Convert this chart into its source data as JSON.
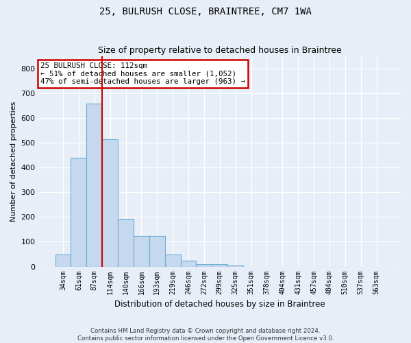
{
  "title": "25, BULRUSH CLOSE, BRAINTREE, CM7 1WA",
  "subtitle": "Size of property relative to detached houses in Braintree",
  "xlabel": "Distribution of detached houses by size in Braintree",
  "ylabel": "Number of detached properties",
  "bar_color": "#c5d8ed",
  "bar_edge_color": "#6aaed6",
  "background_color": "#e8eef7",
  "grid_color": "#ffffff",
  "bin_labels": [
    "34sqm",
    "61sqm",
    "87sqm",
    "114sqm",
    "140sqm",
    "166sqm",
    "193sqm",
    "219sqm",
    "246sqm",
    "272sqm",
    "299sqm",
    "325sqm",
    "351sqm",
    "378sqm",
    "404sqm",
    "431sqm",
    "457sqm",
    "484sqm",
    "510sqm",
    "537sqm",
    "563sqm"
  ],
  "bar_heights": [
    50,
    440,
    660,
    515,
    193,
    123,
    123,
    50,
    25,
    10,
    10,
    5,
    0,
    0,
    0,
    0,
    0,
    0,
    0,
    0,
    0
  ],
  "vline_bar_index": 2,
  "annotation_text": "25 BULRUSH CLOSE: 112sqm\n← 51% of detached houses are smaller (1,052)\n47% of semi-detached houses are larger (963) →",
  "annotation_box_color": "#ffffff",
  "annotation_box_edge_color": "#cc0000",
  "vline_color": "#cc0000",
  "ylim": [
    0,
    850
  ],
  "yticks": [
    0,
    100,
    200,
    300,
    400,
    500,
    600,
    700,
    800
  ],
  "footnote1": "Contains HM Land Registry data © Crown copyright and database right 2024.",
  "footnote2": "Contains public sector information licensed under the Open Government Licence v3.0."
}
